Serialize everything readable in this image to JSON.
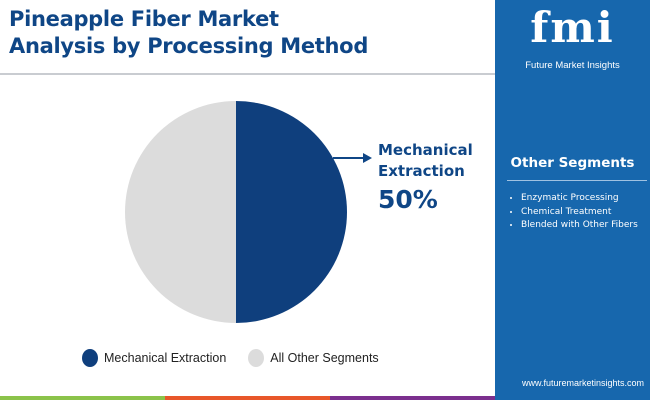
{
  "title_lines": [
    "Pineapple Fiber Market",
    "Analysis by Processing Method"
  ],
  "chart_data": {
    "type": "pie",
    "title": "Pineapple Fiber Market Analysis by Processing Method",
    "slices": [
      {
        "label": "Mechanical Extraction",
        "value": 50,
        "color": "#0f3f7d"
      },
      {
        "label": "All Other Segments",
        "value": 50,
        "color": "#dcdcdc"
      }
    ],
    "annotation": {
      "label_lines": [
        "Mechanical",
        "Extraction"
      ],
      "value": "50%"
    },
    "legend_placement": "bottom"
  },
  "panel": {
    "logo": "fmi",
    "brand": "Future Market Insights",
    "heading": "Other Segments",
    "items": [
      "Enzymatic Processing",
      "Chemical Treatment",
      "Blended with Other Fibers"
    ],
    "url": "www.futuremarketinsights.com"
  },
  "colors": {
    "accent": "#0f4686",
    "panel": "#1767ad",
    "bar": [
      "#8bc34a",
      "#e8572a",
      "#7b2f8e",
      "#1767ad"
    ]
  }
}
